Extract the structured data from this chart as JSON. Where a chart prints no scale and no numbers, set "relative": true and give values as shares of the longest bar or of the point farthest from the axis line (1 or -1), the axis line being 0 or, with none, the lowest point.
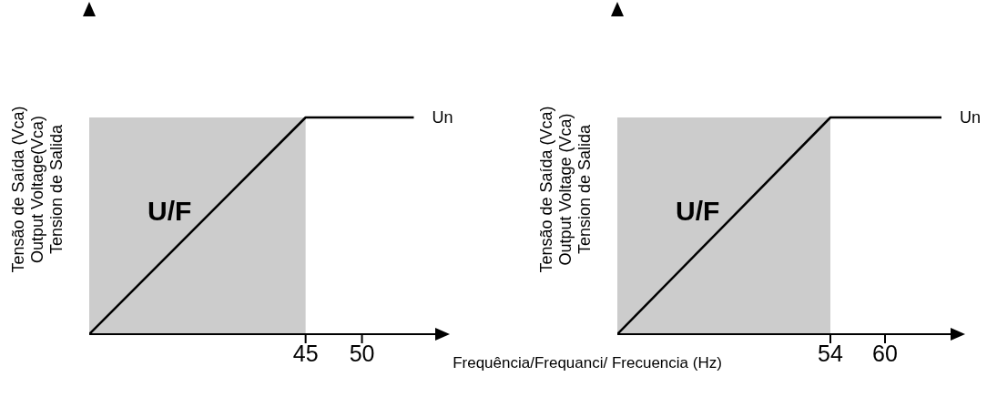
{
  "chart_data": [
    {
      "type": "line",
      "relative": true,
      "ylabel": "Tensão de Saída (Vca)\nOutput Voltage(Vca)\nTension de Salida",
      "xlabel": "Frequência/Frequanci/ Frecuencia (Hz)",
      "xlim": [
        25.8,
        56.5
      ],
      "xticks": [
        45,
        50
      ],
      "series": [
        {
          "type": "area",
          "color": "#cccccc",
          "x": [
            25.8,
            45
          ],
          "values": [
            1,
            1
          ]
        },
        {
          "color": "#000000",
          "x": [
            25.8,
            45,
            54.6
          ],
          "values": [
            0,
            1,
            1
          ]
        }
      ],
      "annotations": [
        "U/F",
        {
          "text": "Un",
          "x": 54.6,
          "y": 1
        }
      ]
    },
    {
      "type": "line",
      "relative": true,
      "ylabel": "Tensão de Saída (Vca)\nOutput Voltage (Vca)\nTension de Salida",
      "xlim": [
        30.6,
        67.2
      ],
      "xticks": [
        54,
        60
      ],
      "series": [
        {
          "type": "area",
          "color": "#cccccc",
          "x": [
            30.6,
            54
          ],
          "values": [
            1,
            1
          ]
        },
        {
          "color": "#000000",
          "x": [
            30.6,
            54,
            66.2
          ],
          "values": [
            0,
            1,
            1
          ]
        }
      ],
      "annotations": [
        "U/F",
        {
          "text": "Un",
          "x": 66.2,
          "y": 1
        }
      ]
    }
  ]
}
